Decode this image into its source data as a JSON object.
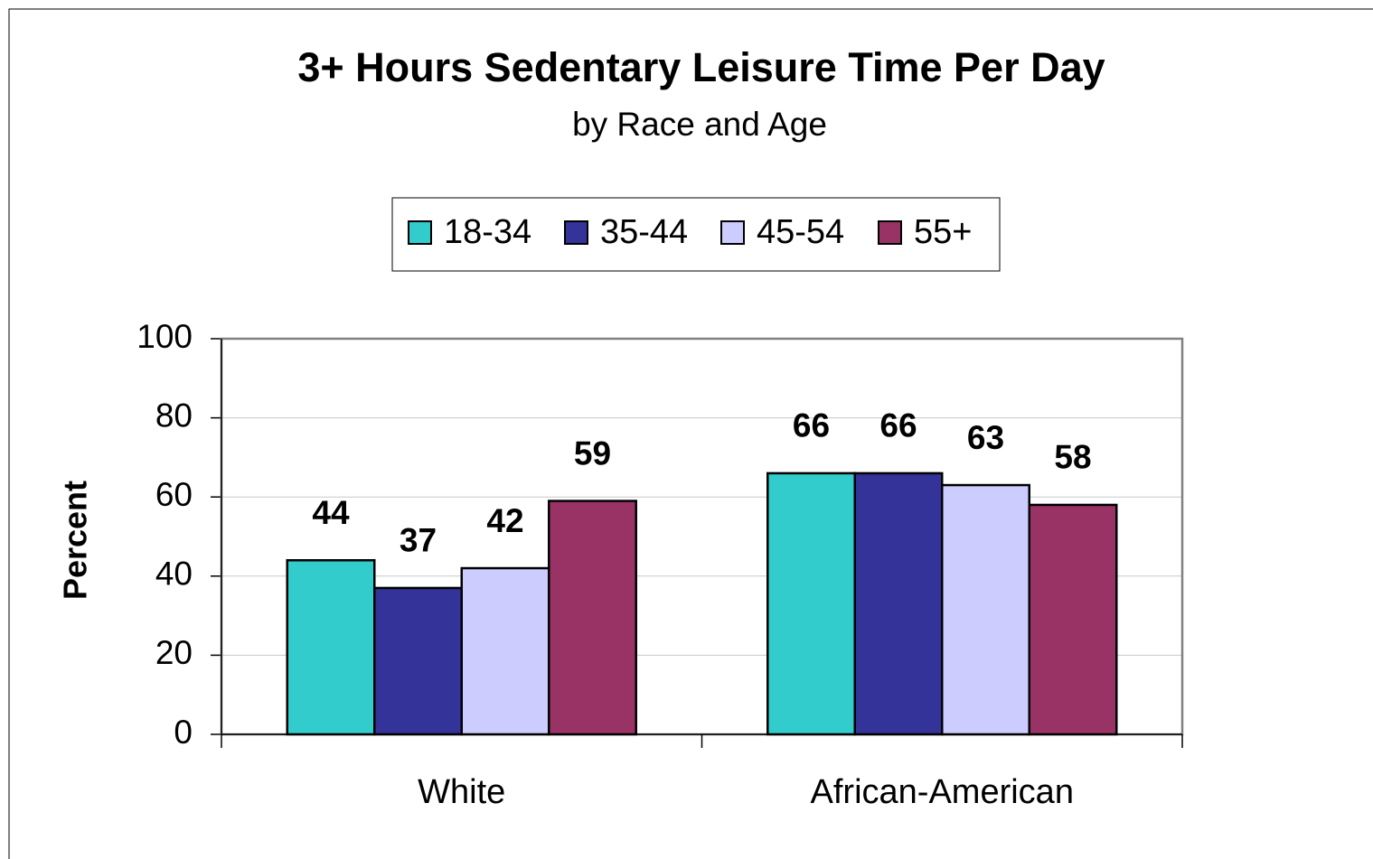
{
  "chart_data": {
    "type": "bar",
    "title": "3+ Hours Sedentary Leisure Time Per Day",
    "subtitle": "by Race and Age",
    "y_label": "Percent",
    "categories": [
      "White",
      "African-American"
    ],
    "series": [
      {
        "name": "18-34",
        "color": "#33cccc",
        "values": [
          44,
          66
        ]
      },
      {
        "name": "35-44",
        "color": "#333399",
        "values": [
          37,
          66
        ]
      },
      {
        "name": "45-54",
        "color": "#ccccff",
        "values": [
          42,
          63
        ]
      },
      {
        "name": "55+",
        "color": "#993366",
        "values": [
          59,
          58
        ]
      }
    ],
    "ylim": [
      0,
      100
    ],
    "yticks": [
      0,
      20,
      40,
      60,
      80,
      100
    ],
    "grid": true,
    "legend": "top"
  }
}
